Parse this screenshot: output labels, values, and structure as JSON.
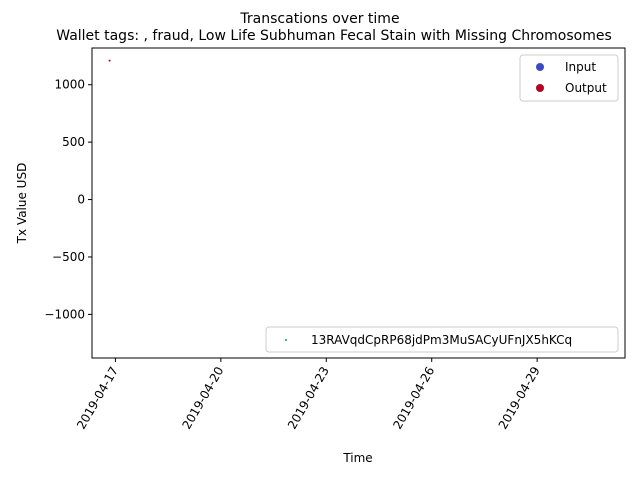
{
  "chart_data": {
    "type": "scatter",
    "suptitle": "Transcations over time",
    "title": "Wallet tags: , fraud, Low Life Subhuman Fecal Stain with Missing Chromosomes",
    "xlabel": "Time",
    "ylabel": "Tx Value USD",
    "x_range": [
      "2019-04-16T08:00",
      "2019-05-01T12:00"
    ],
    "ylim": [
      -1380,
      1320
    ],
    "x_ticks": [
      "2019-04-17",
      "2019-04-20",
      "2019-04-23",
      "2019-04-26",
      "2019-04-29"
    ],
    "y_ticks": [
      -1000,
      -500,
      0,
      500,
      1000
    ],
    "y_tick_labels": [
      "−1000",
      "−500",
      "0",
      "500",
      "1000"
    ],
    "grid": false,
    "legend_type": {
      "placement": "top-right",
      "entries": [
        {
          "label": "Input",
          "color": "#3b4cc0"
        },
        {
          "label": "Output",
          "color": "#b40426"
        }
      ]
    },
    "legend_address": {
      "placement": "bottom-right",
      "entries": [
        {
          "label": "13RAVqdCpRP68jdPm3MuSACyUFnJX5hKCq",
          "color": "#1f77b4"
        }
      ]
    },
    "series": [
      {
        "points": [
          {
            "x": "2019-04-16T20:00",
            "y": 1210,
            "type": "Output",
            "color": "#b40426"
          }
        ]
      }
    ]
  }
}
